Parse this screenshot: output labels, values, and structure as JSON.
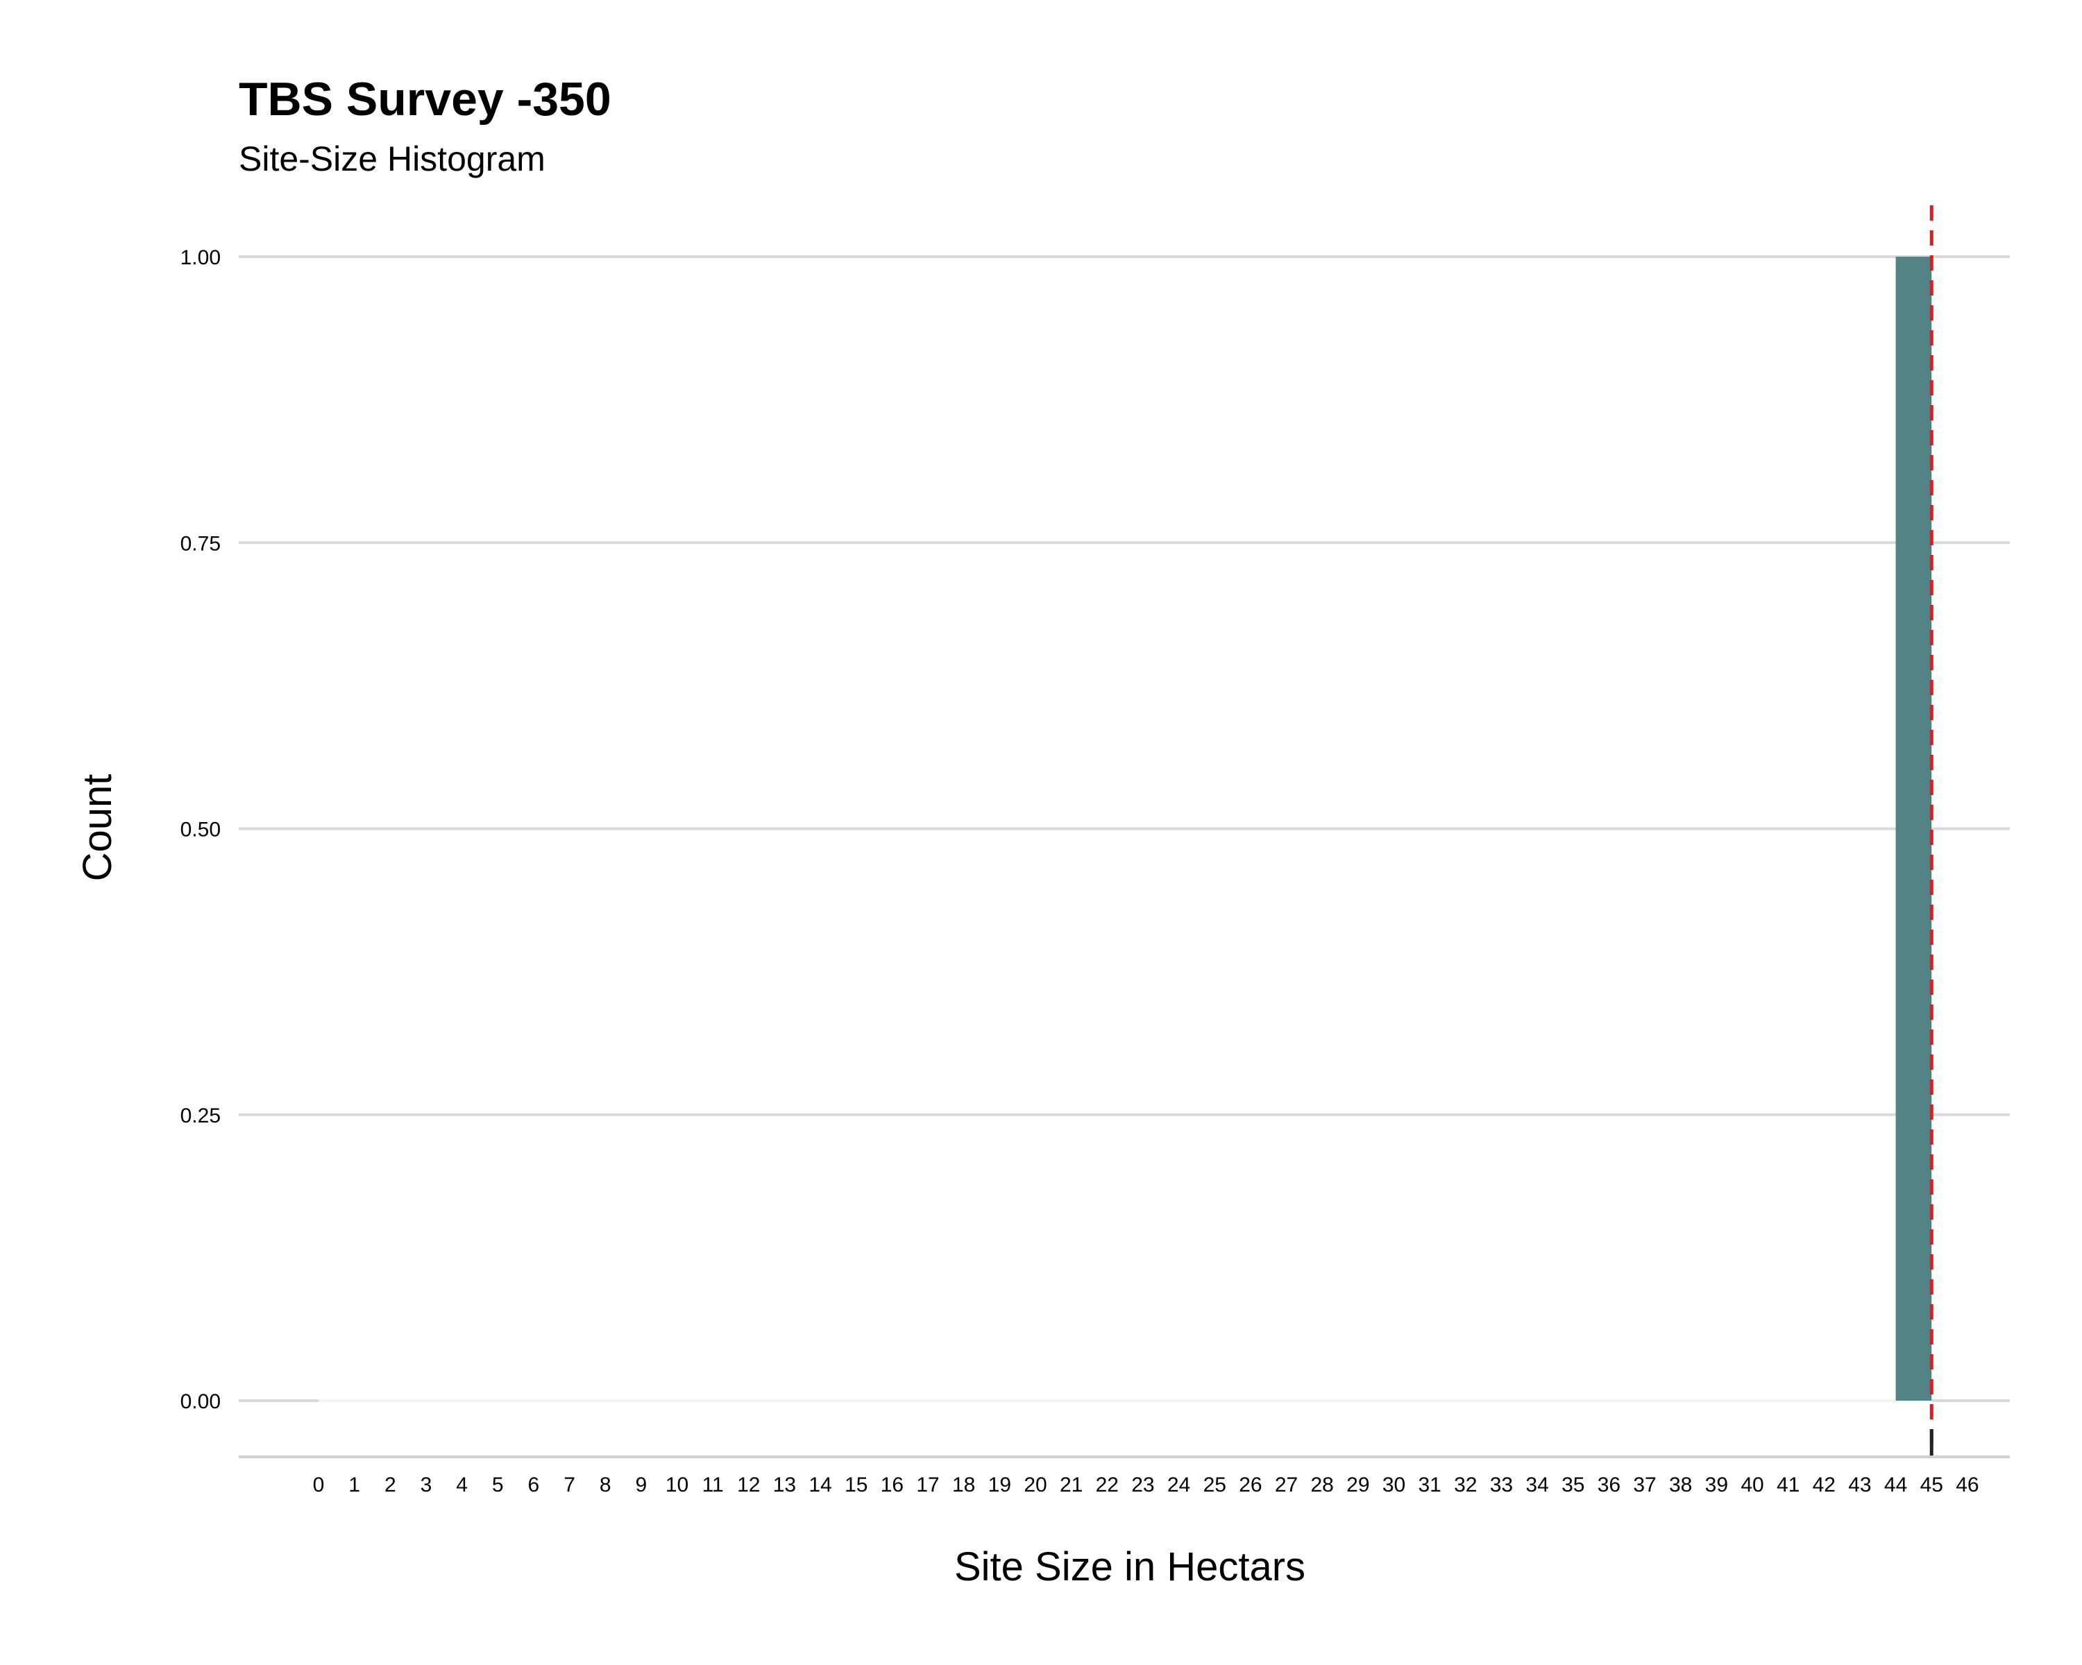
{
  "chart_data": {
    "type": "bar",
    "title": "TBS Survey -350",
    "subtitle": "Site-Size Histogram",
    "xlabel": "Site Size in Hectars",
    "ylabel": "Count",
    "x_ticks": [
      "0",
      "1",
      "2",
      "3",
      "4",
      "5",
      "6",
      "7",
      "8",
      "9",
      "10",
      "11",
      "12",
      "13",
      "14",
      "15",
      "16",
      "17",
      "18",
      "19",
      "20",
      "21",
      "22",
      "23",
      "24",
      "25",
      "26",
      "27",
      "28",
      "29",
      "30",
      "31",
      "32",
      "33",
      "34",
      "35",
      "36",
      "37",
      "38",
      "39",
      "40",
      "41",
      "42",
      "43",
      "44",
      "45",
      "46"
    ],
    "y_ticks": [
      "0.00",
      "0.25",
      "0.50",
      "0.75",
      "1.00"
    ],
    "ylim": [
      0,
      1
    ],
    "bins": [
      {
        "x_start": 44,
        "x_end": 45,
        "count": 1
      }
    ],
    "reference_line": {
      "x": 45,
      "style": "dashed",
      "color": "#e41a1c"
    },
    "bar_color": "#528385",
    "grid": true
  }
}
